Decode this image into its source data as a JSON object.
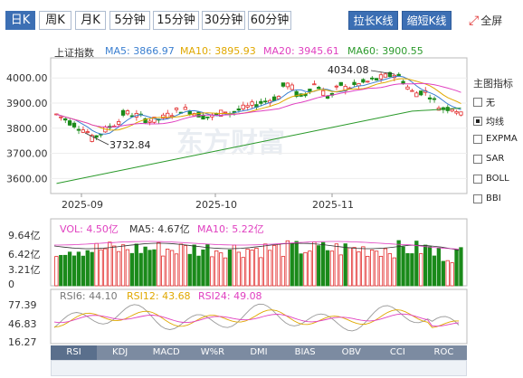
{
  "periods": [
    "日K",
    "周K",
    "月K",
    "5分钟",
    "15分钟",
    "30分钟",
    "60分钟"
  ],
  "toolbar": {
    "lengthen": "拉长K线",
    "shorten": "缩短K线",
    "fullscreen": "全屏"
  },
  "main_legend": {
    "name": "上证指数",
    "ma5": "MA5: 3866.97",
    "ma10": "MA10: 3895.93",
    "ma20": "MA20: 3945.61",
    "ma60": "MA60: 3900.55"
  },
  "price_axis": [
    "4000.00",
    "3900.00",
    "3800.00",
    "3700.00",
    "3600.00"
  ],
  "date_axis": [
    "2025-09",
    "2025-10",
    "2025-11"
  ],
  "annotations": {
    "high": "4034.08",
    "low": "3732.84"
  },
  "vol_legend": {
    "vol": "VOL: 4.50亿",
    "ma5": "MA5: 4.67亿",
    "ma10": "MA10: 5.22亿"
  },
  "vol_axis": [
    "9.64亿",
    "6.42亿",
    "3.21亿",
    "0"
  ],
  "rsi_legend": {
    "rsi6": "RSI6: 44.10",
    "rsi12": "RSI12: 43.68",
    "rsi24": "RSI24: 49.08"
  },
  "rsi_axis": [
    "77.39",
    "46.83",
    "16.27"
  ],
  "side": {
    "title": "主图指标",
    "options": [
      "无",
      "均线",
      "EXPMA",
      "SAR",
      "BOLL",
      "BBI"
    ],
    "selected": "均线"
  },
  "indicators": [
    "RSI",
    "KDJ",
    "MACD",
    "W%R",
    "DMI",
    "BIAS",
    "OBV",
    "CCI",
    "ROC"
  ],
  "watermark": "东方财富",
  "colors": {
    "up": "#e22b2b",
    "down": "#1a8a1a",
    "ma5": "#3b7fd0",
    "ma10": "#e0a800",
    "ma20": "#e040c0",
    "ma60": "#2b9a2b",
    "accent": "#3c6fb4"
  }
}
